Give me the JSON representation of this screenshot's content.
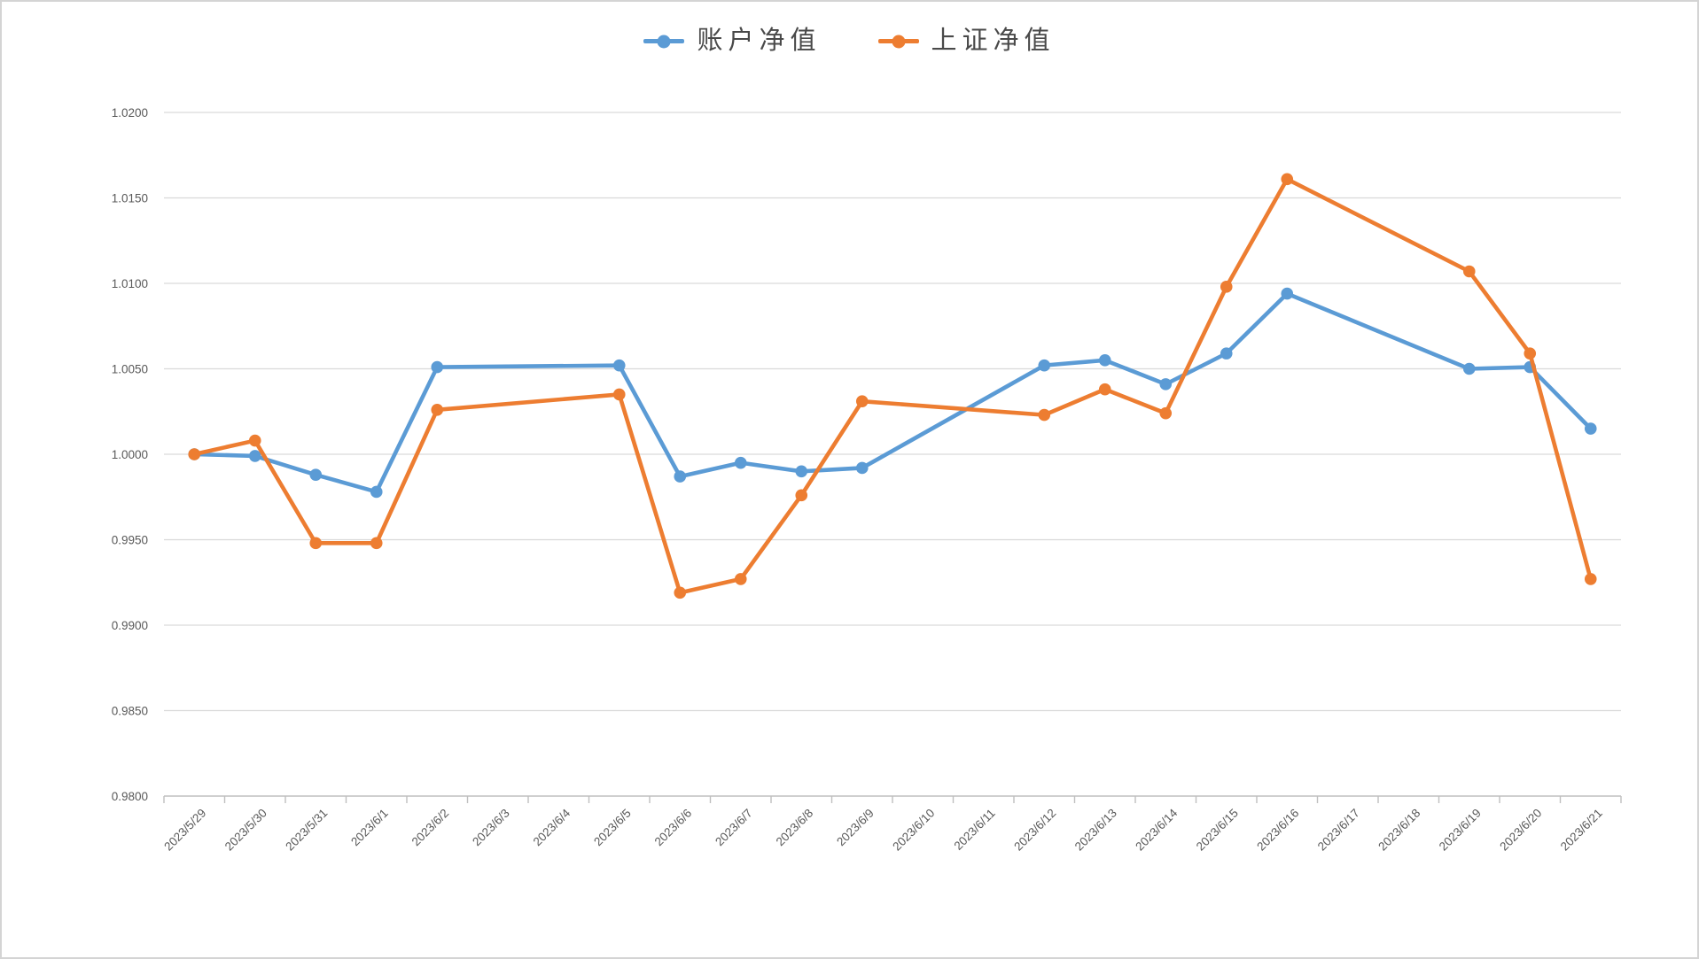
{
  "chart_data": {
    "type": "line",
    "title": "",
    "legend_position": "top-center",
    "legend": [
      "账户净值",
      "上证净值"
    ],
    "categories": [
      "2023/5/29",
      "2023/5/30",
      "2023/5/31",
      "2023/6/1",
      "2023/6/2",
      "2023/6/3",
      "2023/6/4",
      "2023/6/5",
      "2023/6/6",
      "2023/6/7",
      "2023/6/8",
      "2023/6/9",
      "2023/6/10",
      "2023/6/11",
      "2023/6/12",
      "2023/6/13",
      "2023/6/14",
      "2023/6/15",
      "2023/6/16",
      "2023/6/17",
      "2023/6/18",
      "2023/6/19",
      "2023/6/20",
      "2023/6/21"
    ],
    "series": [
      {
        "name": "账户净值",
        "color": "#5B9BD5",
        "values": [
          1.0,
          0.9999,
          0.9988,
          0.9978,
          1.0051,
          null,
          null,
          1.0052,
          0.9987,
          0.9995,
          0.999,
          0.9992,
          null,
          null,
          1.0052,
          1.0055,
          1.0041,
          1.0059,
          1.0094,
          null,
          null,
          1.005,
          1.0051,
          1.0015
        ]
      },
      {
        "name": "上证净值",
        "color": "#ED7D31",
        "values": [
          1.0,
          1.0008,
          0.9948,
          0.9948,
          1.0026,
          null,
          null,
          1.0035,
          0.9919,
          0.9927,
          0.9976,
          1.0031,
          null,
          null,
          1.0023,
          1.0038,
          1.0024,
          1.0098,
          1.0161,
          null,
          null,
          1.0107,
          1.0059,
          0.9927
        ]
      }
    ],
    "ylim": [
      0.98,
      1.02
    ],
    "y_tick_step": 0.005,
    "y_tick_decimals": 4,
    "grid": "horizontal",
    "gap_handling": "connect-across-empty",
    "xlabel": "",
    "ylabel": ""
  },
  "style_colors": {
    "gridline": "#D9D9D9",
    "axis_line": "#BFBFBF",
    "tick_mark": "#BFBFBF",
    "axis_label": "#595959",
    "legend_text": "#494949",
    "background": "#FFFFFF"
  }
}
